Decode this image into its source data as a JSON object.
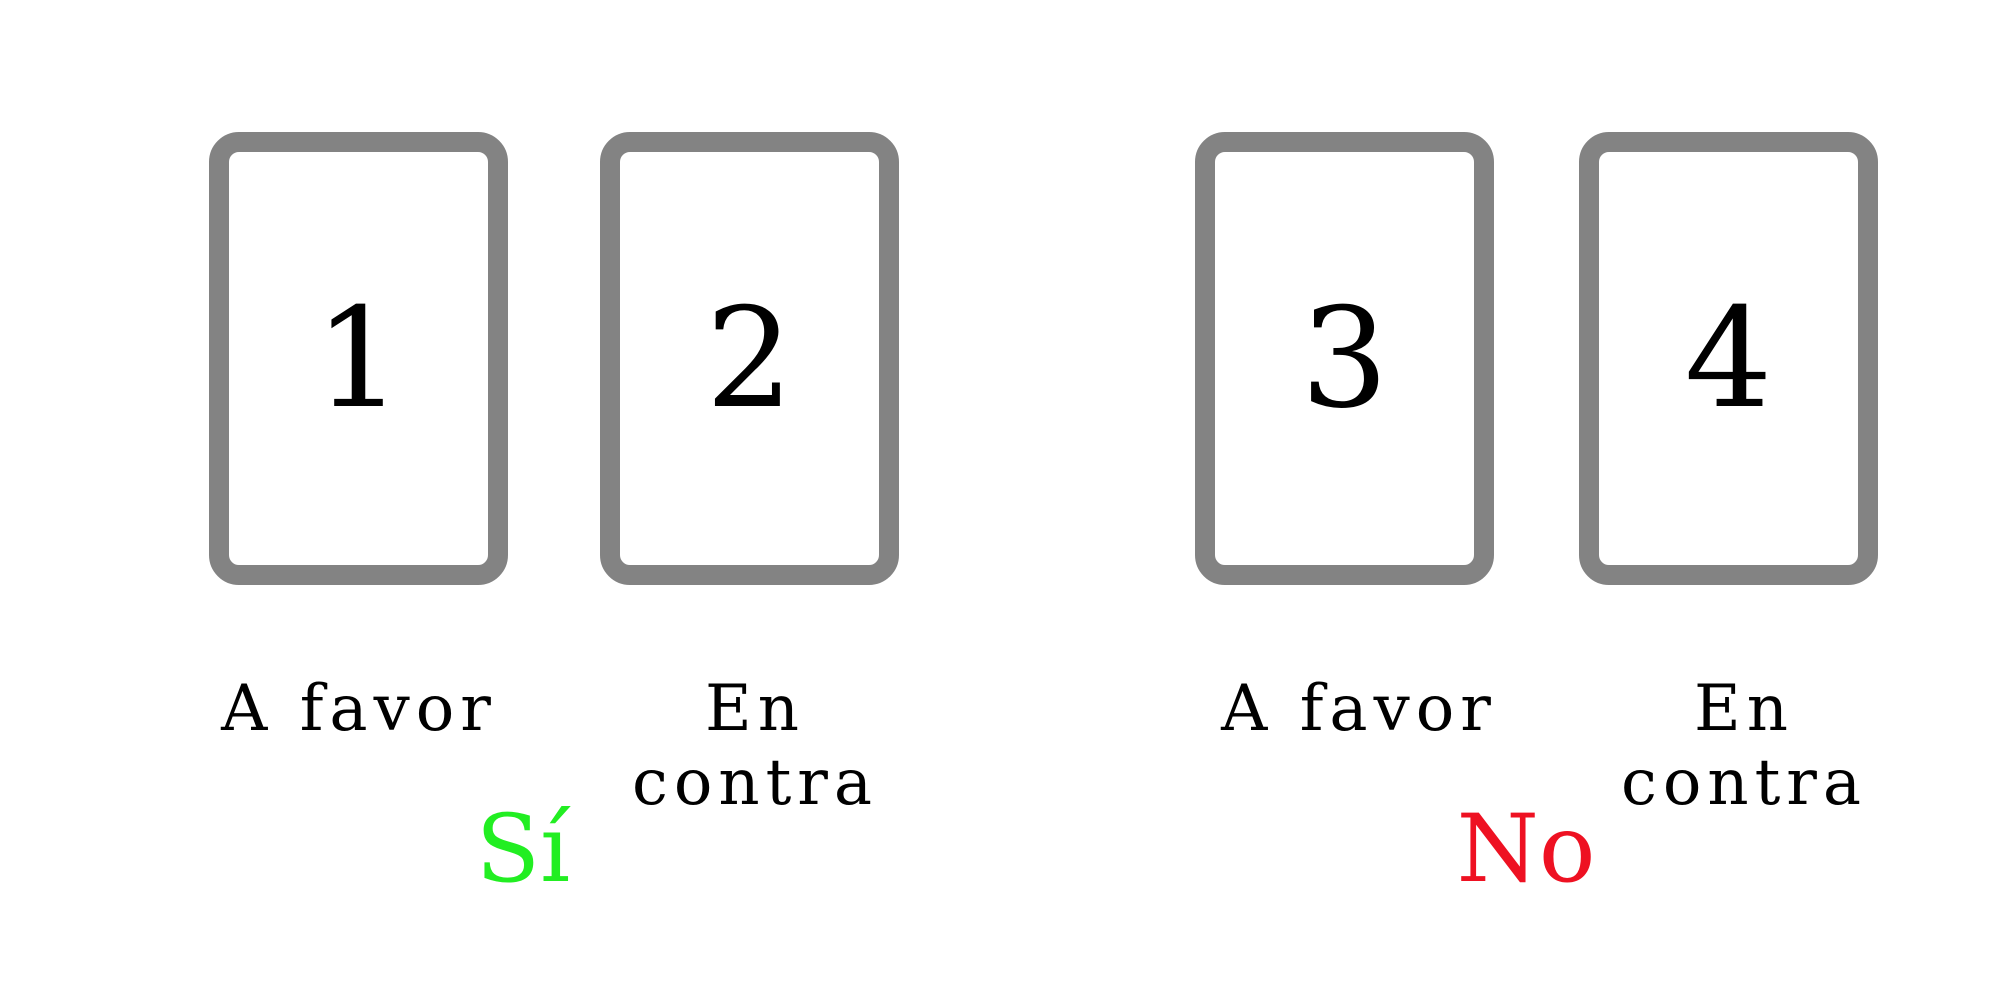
{
  "cards": [
    {
      "number": "1",
      "label": "A favor"
    },
    {
      "number": "2",
      "label": "En contra"
    },
    {
      "number": "3",
      "label": "A favor"
    },
    {
      "number": "4",
      "label": "En contra"
    }
  ],
  "groups": [
    {
      "label": "Sí",
      "color": "#22ee22"
    },
    {
      "label": "No",
      "color": "#ee1122"
    }
  ],
  "colors": {
    "card_border": "#838383"
  }
}
